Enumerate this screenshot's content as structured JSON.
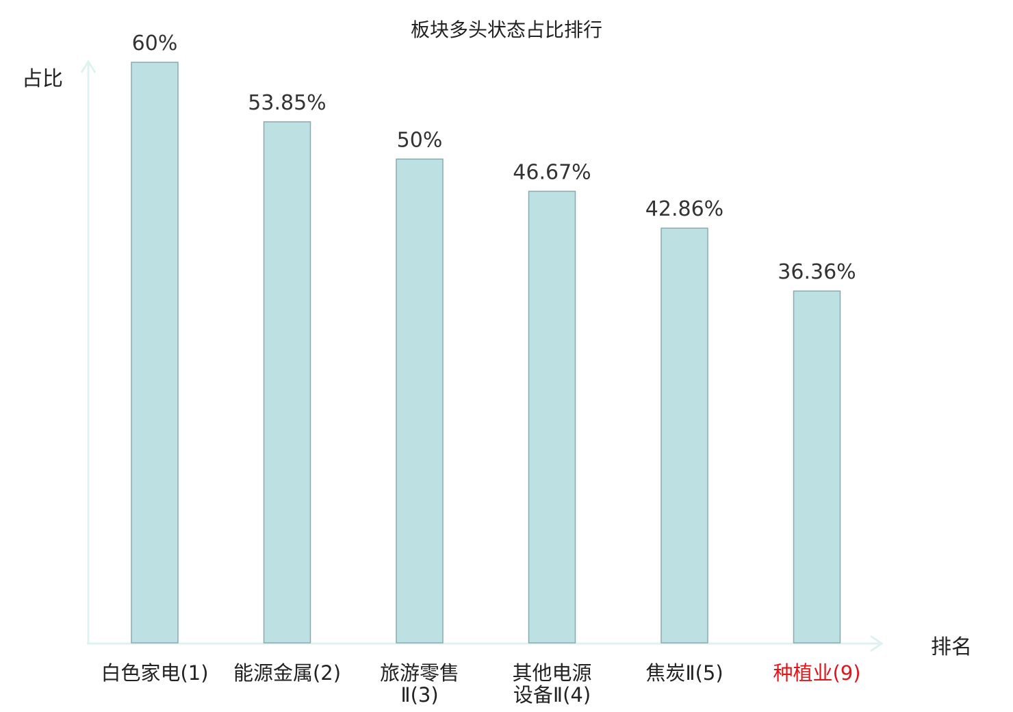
{
  "chart_data": {
    "type": "bar",
    "title": "板块多头状态占比排行",
    "ylabel": "占比",
    "xlabel": "排名",
    "ylim": [
      0,
      60
    ],
    "grid": false,
    "categories": [
      [
        "白色家电(1)"
      ],
      [
        "能源金属(2)"
      ],
      [
        "旅游零售",
        "Ⅱ(3)"
      ],
      [
        "其他电源",
        "设备Ⅱ(4)"
      ],
      [
        "焦炭Ⅱ(5)"
      ],
      [
        "种植业(9)"
      ]
    ],
    "values": [
      60,
      53.85,
      50,
      46.67,
      42.86,
      36.36
    ],
    "value_labels": [
      "60%",
      "53.85%",
      "50%",
      "46.67%",
      "42.86%",
      "36.36%"
    ],
    "highlight_index": 5,
    "colors": {
      "bar_fill": "#bde0e3",
      "bar_stroke": "#8aaab0",
      "axis": "#dff2ef",
      "label": "#222222",
      "highlight": "#e0161b"
    }
  }
}
